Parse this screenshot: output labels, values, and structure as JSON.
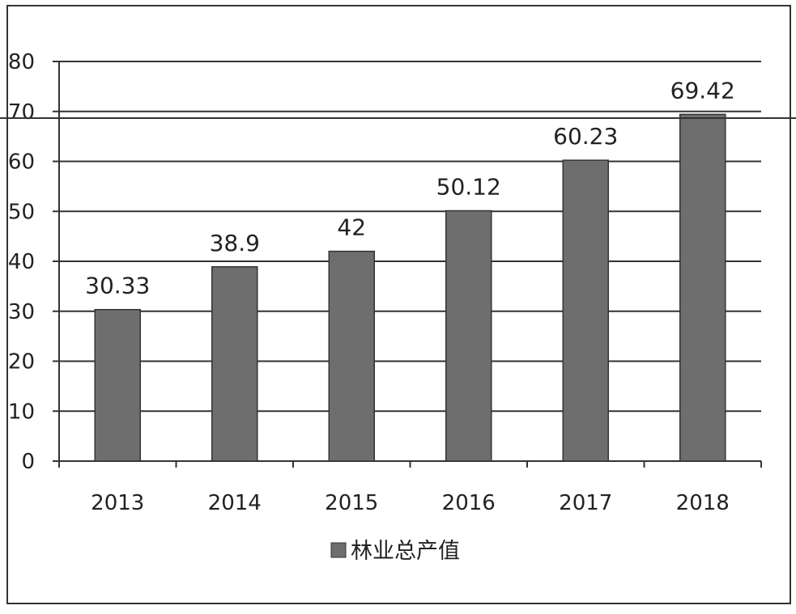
{
  "chart_data": {
    "type": "bar",
    "categories": [
      "2013",
      "2014",
      "2015",
      "2016",
      "2017",
      "2018"
    ],
    "series": [
      {
        "name": "林业总产值",
        "values": [
          30.33,
          38.9,
          42,
          50.12,
          60.23,
          69.42
        ],
        "value_labels": [
          "30.33",
          "38.9",
          "42",
          "50.12",
          "60.23",
          "69.42"
        ]
      }
    ],
    "ylim": [
      0,
      80
    ],
    "yticks": [
      0,
      10,
      20,
      30,
      40,
      50,
      60,
      70,
      80
    ],
    "grid": true,
    "legend_position": "bottom",
    "bar_color": "#6e6e6e"
  }
}
